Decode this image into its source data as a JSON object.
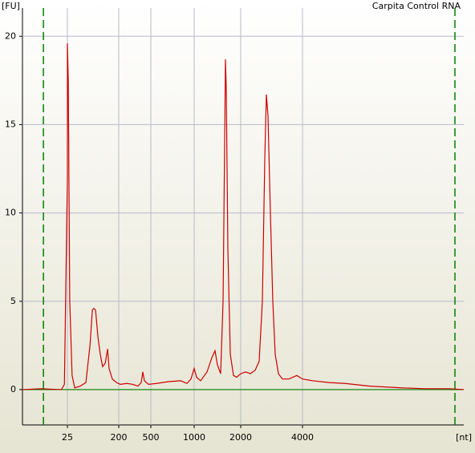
{
  "chart_data": {
    "type": "line",
    "title": "Carpita Control RNA",
    "y_label": "[FU]",
    "x_label": "[nt]",
    "xlim": [
      10,
      8000
    ],
    "xticks": [
      25,
      200,
      500,
      1000,
      2000,
      4000
    ],
    "ylim": [
      -2,
      21.6
    ],
    "yticks": [
      0,
      5,
      10,
      15,
      20
    ],
    "grid": true,
    "markers": [
      17,
      7781
    ],
    "marker_color": "#008000",
    "x": [
      10,
      16,
      23,
      24,
      25,
      25,
      28,
      33,
      41,
      50,
      69,
      88,
      102,
      110,
      115,
      121,
      129,
      137,
      145,
      154,
      162,
      167,
      178,
      192,
      215,
      275,
      328,
      380,
      410,
      425,
      440,
      478,
      565,
      704,
      843,
      917,
      963,
      1000,
      1052,
      1138,
      1276,
      1379,
      1448,
      1500,
      1569,
      1621,
      1655,
      1672,
      1690,
      1724,
      1776,
      1845,
      1914,
      2000,
      2156,
      2312,
      2468,
      2597,
      2701,
      2779,
      2831,
      2883,
      2961,
      3039,
      3117,
      3221,
      3351,
      3558,
      3818,
      4000,
      4259,
      4657,
      5055,
      5652,
      6448,
      7045,
      7642,
      8000
    ],
    "series": [
      {
        "color": "#cc0000",
        "values": [
          0,
          0.05,
          0,
          0.3,
          12,
          19.6,
          17.5,
          5,
          0.8,
          0.1,
          0.2,
          0.4,
          2.5,
          4.5,
          4.6,
          4.5,
          3,
          2,
          1.3,
          1.5,
          2.3,
          1.2,
          0.6,
          0.4,
          0.3,
          0.35,
          0.3,
          0.2,
          0.4,
          1,
          0.5,
          0.3,
          0.35,
          0.45,
          0.5,
          0.35,
          0.6,
          1.2,
          0.7,
          0.5,
          1,
          1.8,
          2.2,
          1.4,
          0.9,
          5,
          14,
          18.7,
          17,
          8,
          2,
          0.8,
          0.7,
          0.9,
          1,
          0.9,
          1.1,
          1.6,
          5,
          13,
          16.7,
          15.5,
          10,
          5,
          2,
          0.9,
          0.6,
          0.6,
          0.8,
          0.6,
          0.5,
          0.4,
          0.35,
          0.2,
          0.1,
          0.05,
          0.05,
          0
        ]
      },
      {
        "color": "#008000",
        "values": [
          0,
          0,
          0,
          0,
          0,
          0,
          0,
          0,
          0,
          0,
          0,
          0,
          0,
          0,
          0,
          0,
          0,
          0,
          0,
          0,
          0,
          0,
          0,
          0,
          0,
          0,
          0,
          0,
          0,
          0,
          0,
          0,
          0,
          0,
          0,
          0,
          0,
          0,
          0,
          0,
          0,
          0,
          0,
          0,
          0,
          0,
          0,
          0,
          0,
          0,
          0,
          0,
          0,
          0,
          0,
          0,
          0,
          0,
          0,
          0,
          0,
          0,
          0,
          0,
          0,
          0,
          0,
          0,
          0,
          0,
          0,
          0,
          0,
          0,
          0,
          0,
          0,
          0
        ]
      }
    ]
  }
}
